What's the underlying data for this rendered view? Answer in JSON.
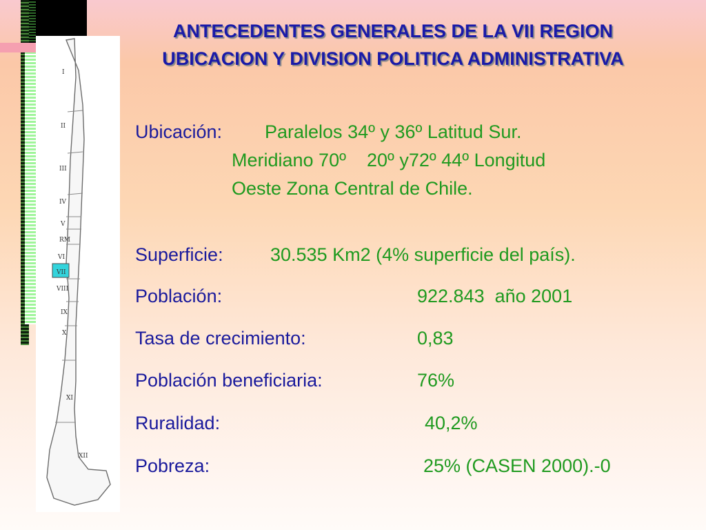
{
  "header": {
    "title_line1": "ANTECEDENTES GENERALES DE LA VII REGION",
    "title_line2": "UBICACION Y DIVISION POLITICA ADMINISTRATIVA"
  },
  "map": {
    "regions": [
      "I",
      "II",
      "III",
      "IV",
      "V",
      "RM",
      "VI",
      "VII",
      "VIII",
      "IX",
      "X",
      "XI",
      "XII"
    ],
    "highlight_region": "VII",
    "highlight_color": "#33d4dc"
  },
  "location": {
    "label": "Ubicación:",
    "line1": "Paralelos 34º y 36º Latitud Sur.",
    "line2": "Meridiano 70º    20º y72º 44º Longitud",
    "line3": "Oeste Zona Central de Chile."
  },
  "stats": {
    "superficie_label": "Superficie:",
    "superficie_value": "30.535 Km2 (4% superficie del país).",
    "poblacion_label": "Población:",
    "poblacion_value": "922.843  año 2001",
    "tasa_label": "Tasa de crecimiento:",
    "tasa_value": "0,83",
    "beneficiaria_label": "Población beneficiaria:",
    "beneficiaria_value": "76%",
    "ruralidad_label": "Ruralidad:",
    "ruralidad_value": "40,2%",
    "pobreza_label": "Pobreza:",
    "pobreza_value": "25% (CASEN 2000).-0"
  },
  "colors": {
    "title": "#1a1aa8",
    "label": "#1a1a9c",
    "value": "#1f9a1f"
  }
}
